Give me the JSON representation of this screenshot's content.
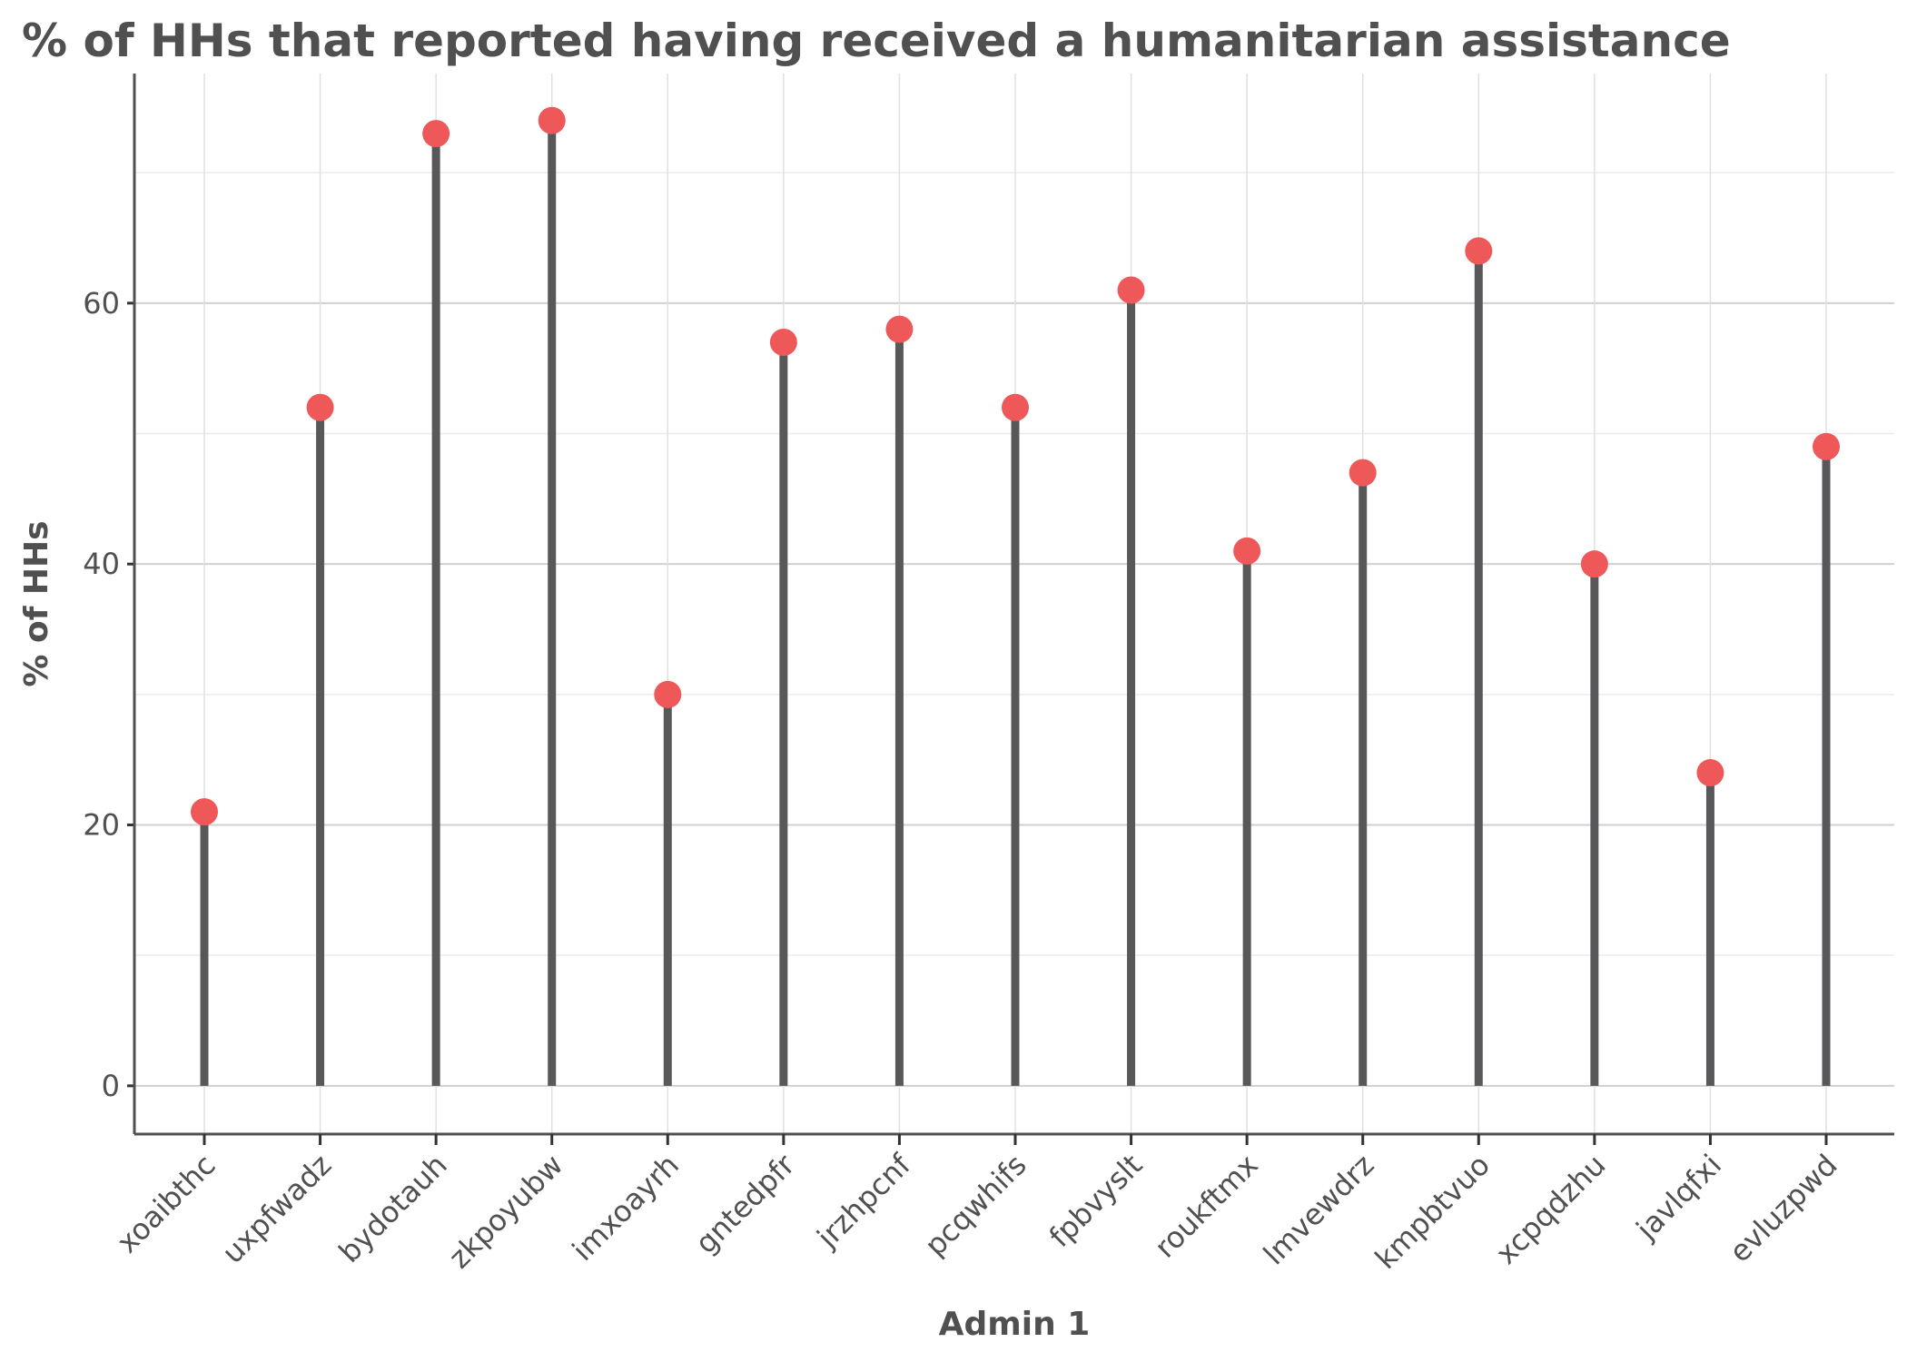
{
  "chart_data": {
    "type": "lollipop",
    "title": "% of HHs that reported having received a humanitarian assistance",
    "xlabel": "Admin 1",
    "ylabel": "% of HHs",
    "categories": [
      "xoaibthc",
      "uxpfwadz",
      "bydotauh",
      "zkpoyubw",
      "imxoayrh",
      "gntedpfr",
      "jrzhpcnf",
      "pcqwhifs",
      "fpbvyslt",
      "roukftmx",
      "lmvewdrz",
      "kmpbtvuo",
      "xcpqdzhu",
      "javlqfxi",
      "evluzpwd"
    ],
    "values": [
      21,
      52,
      73,
      74,
      30,
      57,
      58,
      52,
      61,
      41,
      47,
      64,
      40,
      24,
      49
    ],
    "ylim": [
      -3.7,
      77.6
    ],
    "yticks": [
      0,
      20,
      40,
      60
    ],
    "grid": true,
    "colors": {
      "point": "#EE5859",
      "stem": "#58585A",
      "text": "#505050"
    }
  }
}
